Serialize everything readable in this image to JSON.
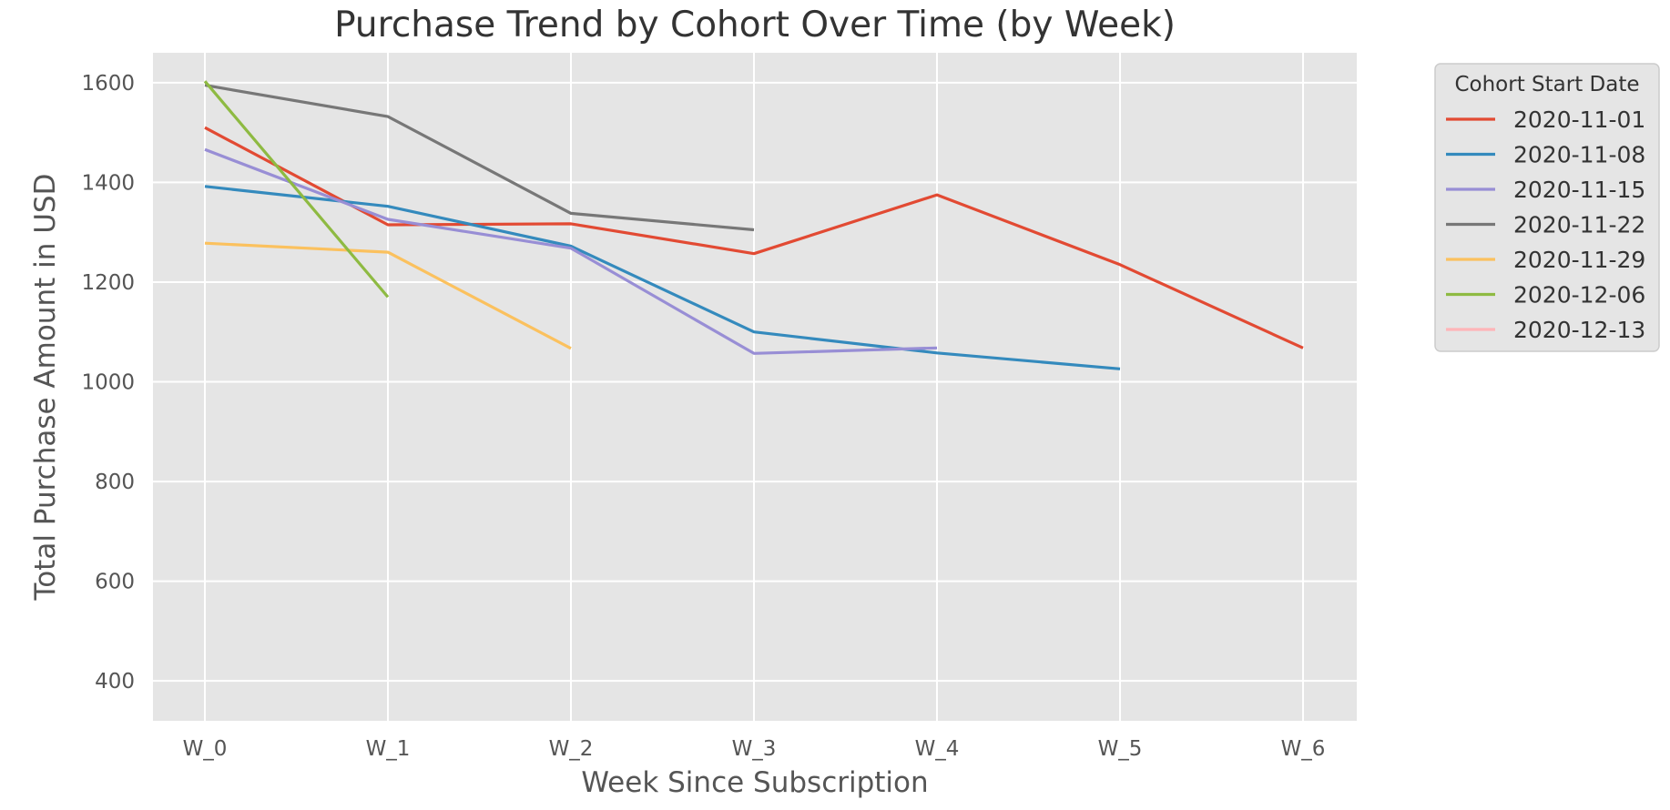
{
  "chart_data": {
    "type": "line",
    "title": "Purchase Trend by Cohort Over Time (by Week)",
    "xlabel": "Week Since Subscription",
    "ylabel": "Total Purchase Amount in USD",
    "categories": [
      "W_0",
      "W_1",
      "W_2",
      "W_3",
      "W_4",
      "W_5",
      "W_6"
    ],
    "yticks": [
      400,
      600,
      800,
      1000,
      1200,
      1400,
      1600
    ],
    "ylim": [
      320,
      1660
    ],
    "grid": true,
    "legend": {
      "title": "Cohort Start Date",
      "placement": "outside-right-top"
    },
    "series": [
      {
        "name": "2020-11-01",
        "color": "#E24A33",
        "values": [
          1510,
          1315,
          1317,
          1257,
          1375,
          1235,
          1068
        ]
      },
      {
        "name": "2020-11-08",
        "color": "#348ABD",
        "values": [
          1392,
          1352,
          1272,
          1100,
          1058,
          1026,
          null
        ]
      },
      {
        "name": "2020-11-15",
        "color": "#988ED5",
        "values": [
          1466,
          1326,
          1268,
          1057,
          1068,
          null,
          null
        ]
      },
      {
        "name": "2020-11-22",
        "color": "#777777",
        "values": [
          1595,
          1532,
          1338,
          1305,
          null,
          null,
          null
        ]
      },
      {
        "name": "2020-11-29",
        "color": "#FBC15E",
        "values": [
          1278,
          1260,
          1067,
          null,
          null,
          null,
          null
        ]
      },
      {
        "name": "2020-12-06",
        "color": "#8EBA42",
        "values": [
          1603,
          1170,
          null,
          null,
          null,
          null,
          null
        ]
      },
      {
        "name": "2020-12-13",
        "color": "#FFB5B8",
        "values": [
          null,
          null,
          null,
          null,
          null,
          null,
          null
        ]
      }
    ]
  }
}
